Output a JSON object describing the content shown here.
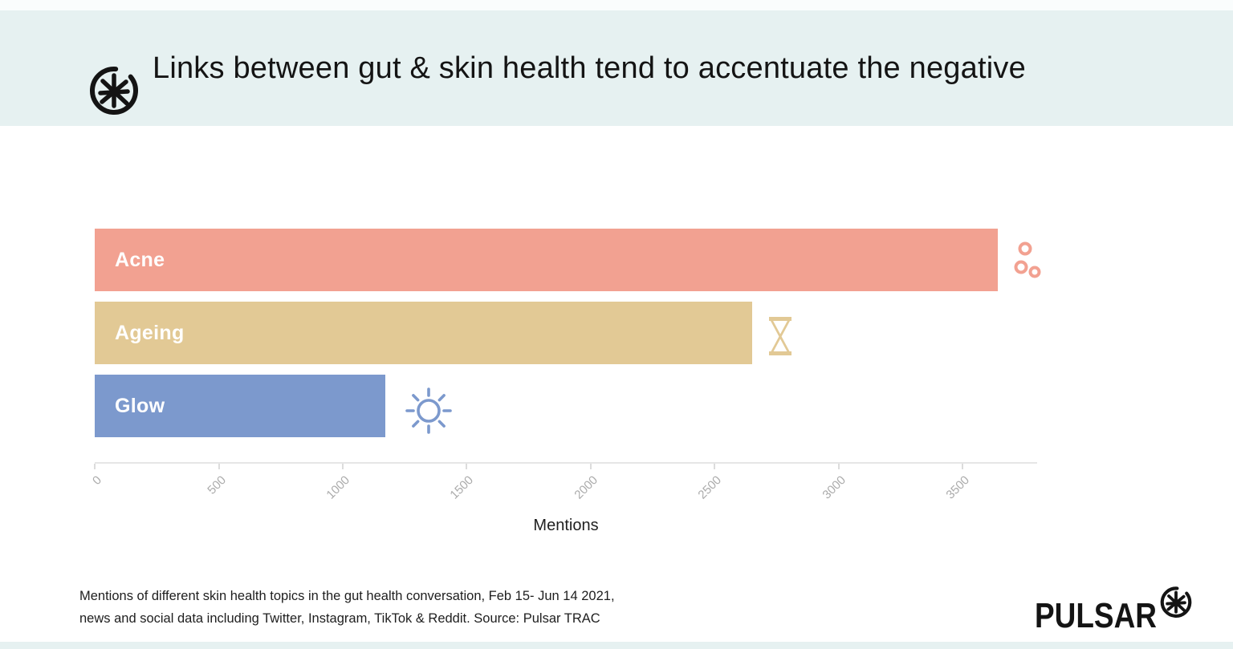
{
  "header": {
    "title": "Links between gut & skin health tend to accentuate the negative",
    "background_color": "#E6F1F1",
    "logo_icon": "pulsar-asterisk"
  },
  "chart_data": {
    "type": "bar",
    "orientation": "horizontal",
    "title": "Links between gut & skin health tend to accentuate the negative",
    "categories": [
      "Acne",
      "Ageing",
      "Glow"
    ],
    "values": [
      3640,
      2650,
      1170
    ],
    "bar_colors": [
      "#F2A191",
      "#E2C995",
      "#7C99CD"
    ],
    "bar_icons": [
      "acne-spots",
      "hourglass",
      "sun"
    ],
    "bar_label_color": "#FFFFFF",
    "xlabel": "Mentions",
    "xlim": [
      0,
      3800
    ],
    "xticks": [
      0,
      500,
      1000,
      1500,
      2000,
      2500,
      3000,
      3500
    ],
    "grid": false,
    "legend": false,
    "axis_color": "#E6E6E6",
    "tick_label_color": "#ABABAB"
  },
  "footer": {
    "note_line1": "Mentions of different skin health topics in the gut health conversation, Feb 15- Jun 14 2021,",
    "note_line2": "news and social data including Twitter, Instagram, TikTok & Reddit. Source: Pulsar TRAC",
    "brand_wordmark": "PULSAR",
    "brand_icon": "pulsar-asterisk"
  }
}
